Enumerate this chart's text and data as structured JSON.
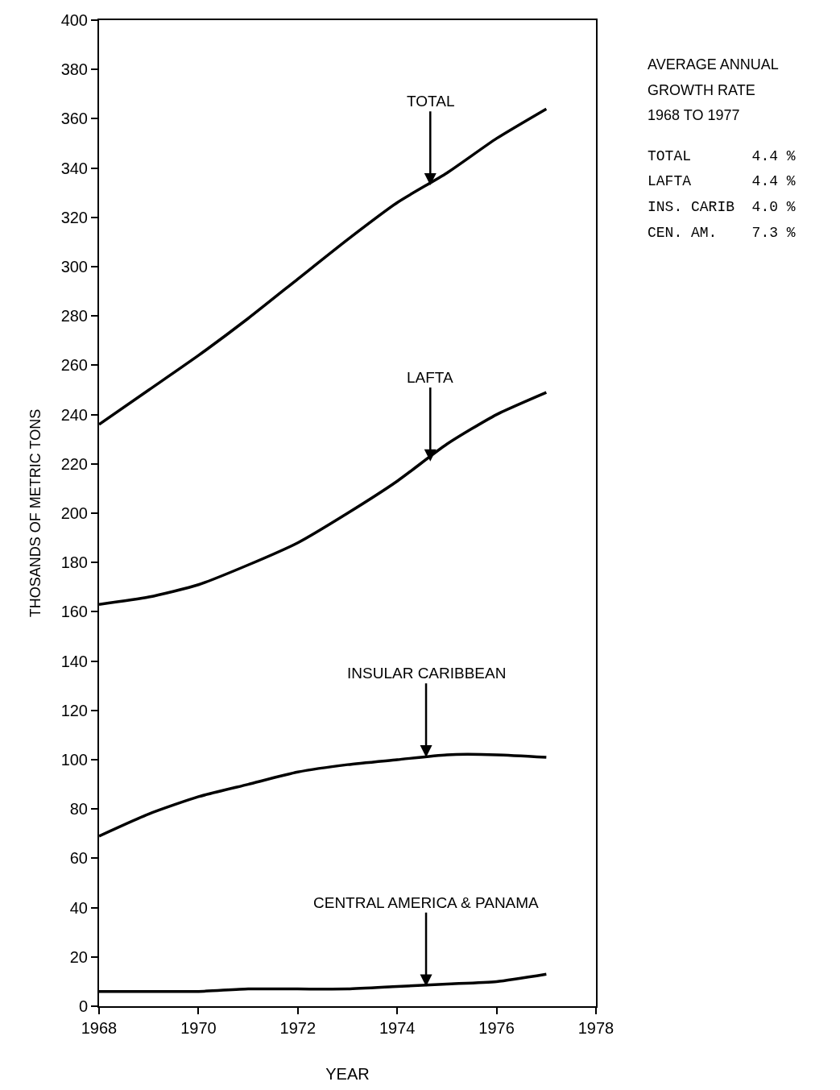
{
  "chart_data": {
    "type": "line",
    "xlabel": "YEAR",
    "ylabel": "THOSANDS OF METRIC TONS",
    "x": [
      "1968",
      "1969",
      "1970",
      "1971",
      "1972",
      "1973",
      "1974",
      "1975",
      "1976",
      "1977"
    ],
    "series": [
      {
        "color": "#000000",
        "values": [
          236,
          250,
          264,
          279,
          295,
          311,
          326,
          338,
          352,
          364
        ]
      },
      {
        "color": "#000000",
        "values": [
          163,
          166,
          171,
          179,
          188,
          200,
          213,
          228,
          240,
          249
        ]
      },
      {
        "color": "#000000",
        "values": [
          69,
          78,
          85,
          90,
          95,
          98,
          100,
          102,
          102,
          101
        ]
      },
      {
        "color": "#000000",
        "values": [
          6,
          6,
          6,
          7,
          7,
          7,
          8,
          9,
          10,
          13
        ]
      }
    ],
    "xlim": [
      "1968",
      "1978"
    ],
    "xticks": [
      "1968",
      "1970",
      "1972",
      "1974",
      "1976",
      "1978"
    ],
    "ylim": [
      0,
      400
    ],
    "yticks": [
      0,
      20,
      40,
      60,
      80,
      100,
      120,
      140,
      160,
      180,
      200,
      220,
      240,
      260,
      280,
      300,
      320,
      340,
      360,
      380,
      400
    ],
    "marker": "none",
    "line_style": "solid",
    "annotations": [
      {
        "text": "TOTAL",
        "x": "1974-09",
        "y": 333
      },
      {
        "text": "LAFTA",
        "x": "1974-09",
        "y": 221
      },
      {
        "text": "INSULAR CARIBBEAN",
        "x": "1974-08",
        "y": 101
      },
      {
        "text": "CENTRAL AMERICA & PANAMA",
        "x": "1974-08",
        "y": 8
      },
      "AVERAGE ANNUAL",
      "GROWTH RATE",
      "1968 TO 1977",
      "TOTAL       4.4 %",
      "LAFTA       4.4 %",
      "INS. CARIB  4.0 %",
      "CEN. AM.    7.3 %"
    ]
  }
}
